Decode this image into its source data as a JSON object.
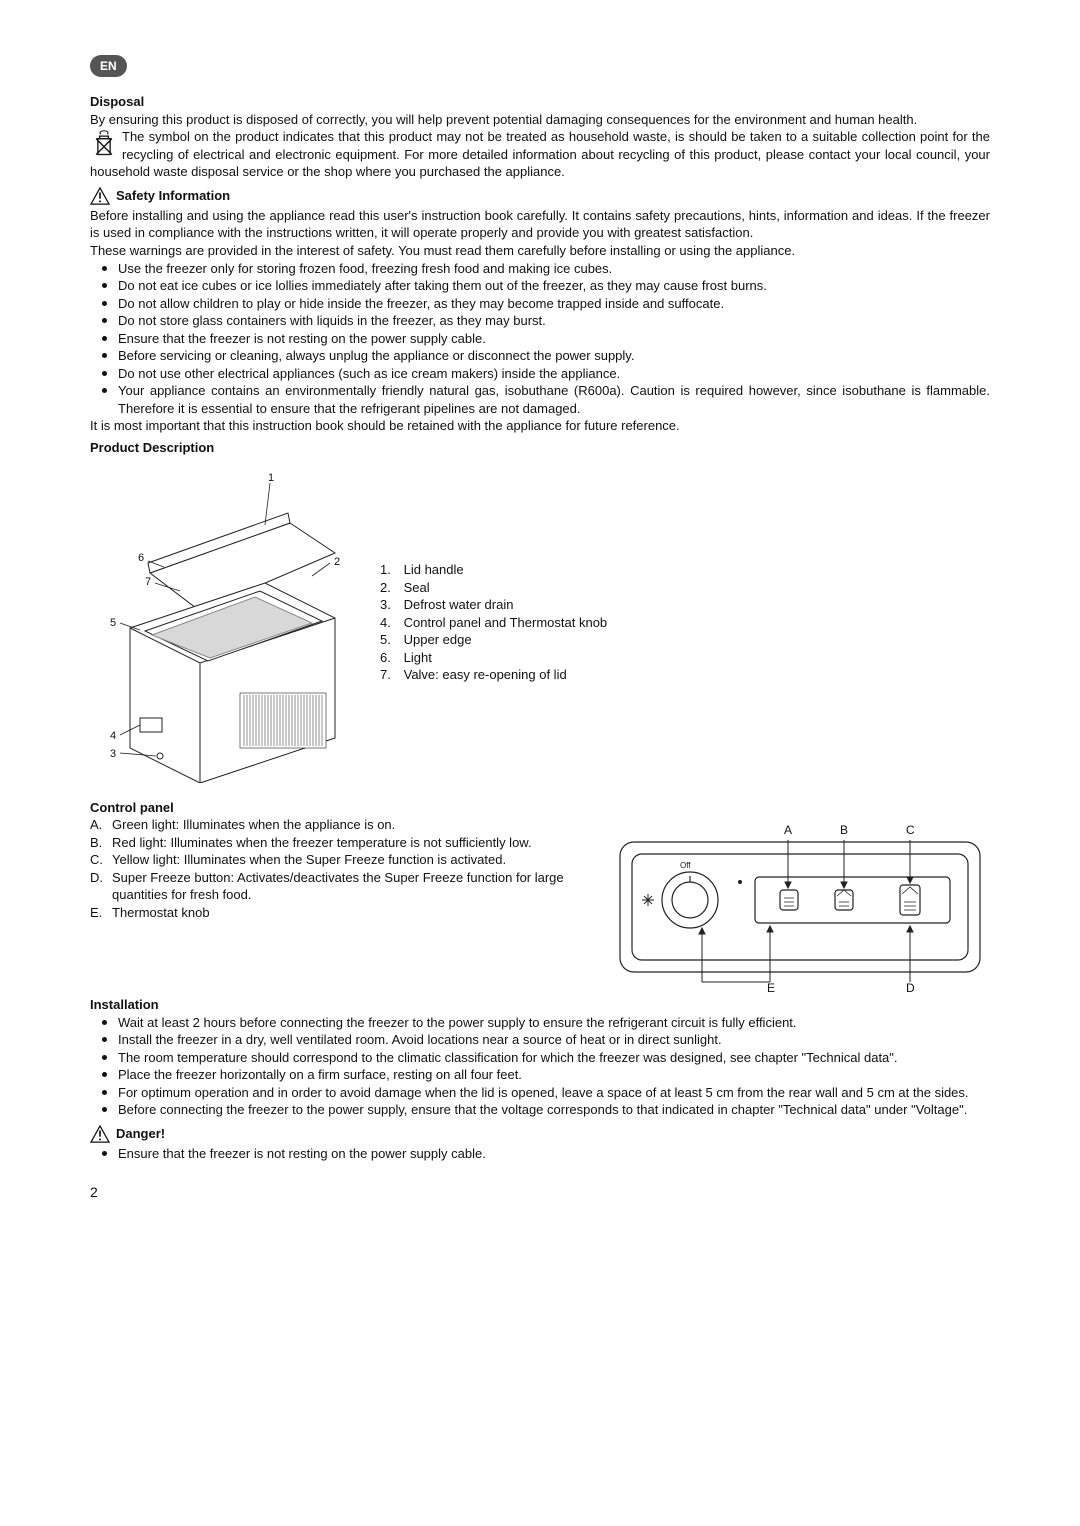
{
  "lang_badge": "EN",
  "disposal": {
    "heading": "Disposal",
    "p1": "By ensuring this product is disposed of correctly, you will help prevent potential damaging consequences for the environment and human health.",
    "p2": "The symbol on the product indicates that this product may not be treated as household waste, is should be taken to a suitable collection point for the recycling of electrical and electronic equipment. For more detailed information about recycling of this product, please contact your local council, your household waste disposal service or the shop where you purchased the appliance."
  },
  "safety": {
    "heading": "Safety Information",
    "intro1": "Before installing and using the appliance read this user's instruction book carefully. It contains safety precautions, hints, information and ideas. If the freezer is used in compliance with the instructions written, it will operate properly and provide you with greatest satisfaction.",
    "intro2": "These warnings are provided in the interest of safety. You must read them carefully before installing or using the appliance.",
    "bullets": [
      "Use the freezer only for storing frozen food, freezing fresh food and making ice cubes.",
      "Do not eat ice cubes or ice lollies immediately after taking them out of the freezer, as they may cause frost burns.",
      "Do not allow children to play or hide inside the freezer, as they may become trapped inside and suffocate.",
      "Do not store glass containers with liquids in the freezer, as they may burst.",
      "Ensure that the freezer is not resting on the power supply cable.",
      "Before servicing or cleaning, always unplug the appliance or disconnect the power supply.",
      "Do not use other electrical appliances (such as ice cream makers) inside the appliance.",
      "Your appliance contains an environmentally friendly natural gas, isobuthane (R600a). Caution is required however, since isobuthane is flammable. Therefore it is essential to ensure that the refrigerant pipelines are not damaged."
    ],
    "outro": "It is most important that this instruction book should be retained with the appliance for future reference."
  },
  "product": {
    "heading": "Product Description",
    "items": [
      {
        "n": "1.",
        "t": "Lid handle"
      },
      {
        "n": "2.",
        "t": "Seal"
      },
      {
        "n": "3.",
        "t": "Defrost water drain"
      },
      {
        "n": "4.",
        "t": "Control panel and Thermostat knob"
      },
      {
        "n": "5.",
        "t": "Upper edge"
      },
      {
        "n": "6.",
        "t": "Light"
      },
      {
        "n": "7.",
        "t": "Valve: easy re-opening of lid"
      }
    ],
    "diagram": {
      "labels": {
        "1": "1",
        "2": "2",
        "3": "3",
        "4": "4",
        "5": "5",
        "6": "6",
        "7": "7"
      },
      "stroke": "#222",
      "fill": "#ffffff"
    }
  },
  "control": {
    "heading": "Control panel",
    "items": [
      {
        "l": "A.",
        "t": "Green light: Illuminates when the appliance is on."
      },
      {
        "l": "B.",
        "t": "Red light: Illuminates when the freezer temperature is not sufficiently low."
      },
      {
        "l": "C.",
        "t": "Yellow light: Illuminates when the Super Freeze function is activated."
      },
      {
        "l": "D.",
        "t": "Super Freeze button: Activates/deactivates the Super Freeze function for large quantities for fresh food."
      },
      {
        "l": "E.",
        "t": "Thermostat knob"
      }
    ],
    "diagram": {
      "labels": {
        "A": "A",
        "B": "B",
        "C": "C",
        "D": "D",
        "E": "E",
        "Off": "Off"
      },
      "stroke": "#222"
    }
  },
  "installation": {
    "heading": "Installation",
    "bullets": [
      "Wait at least 2 hours before connecting the freezer to the power supply to ensure the refrigerant circuit is fully efficient.",
      "Install the freezer in a dry, well ventilated room. Avoid locations near a source of heat or in direct sunlight.",
      "The room temperature should correspond to the climatic classification for which the freezer was designed, see chapter \"Technical data\".",
      "Place the freezer horizontally on a firm surface, resting on all four feet.",
      "For optimum operation and in order to avoid damage when the lid is opened, leave a space of at least 5 cm from the rear wall and 5 cm at the sides.",
      "Before connecting the freezer to the power supply, ensure that the voltage corresponds to that indicated in chapter \"Technical data\" under \"Voltage\"."
    ]
  },
  "danger": {
    "heading": "Danger!",
    "bullets": [
      "Ensure that the freezer is not resting on the power supply cable."
    ]
  },
  "page_number": "2",
  "colors": {
    "text": "#111",
    "badge_bg": "#555",
    "badge_fg": "#fff"
  }
}
